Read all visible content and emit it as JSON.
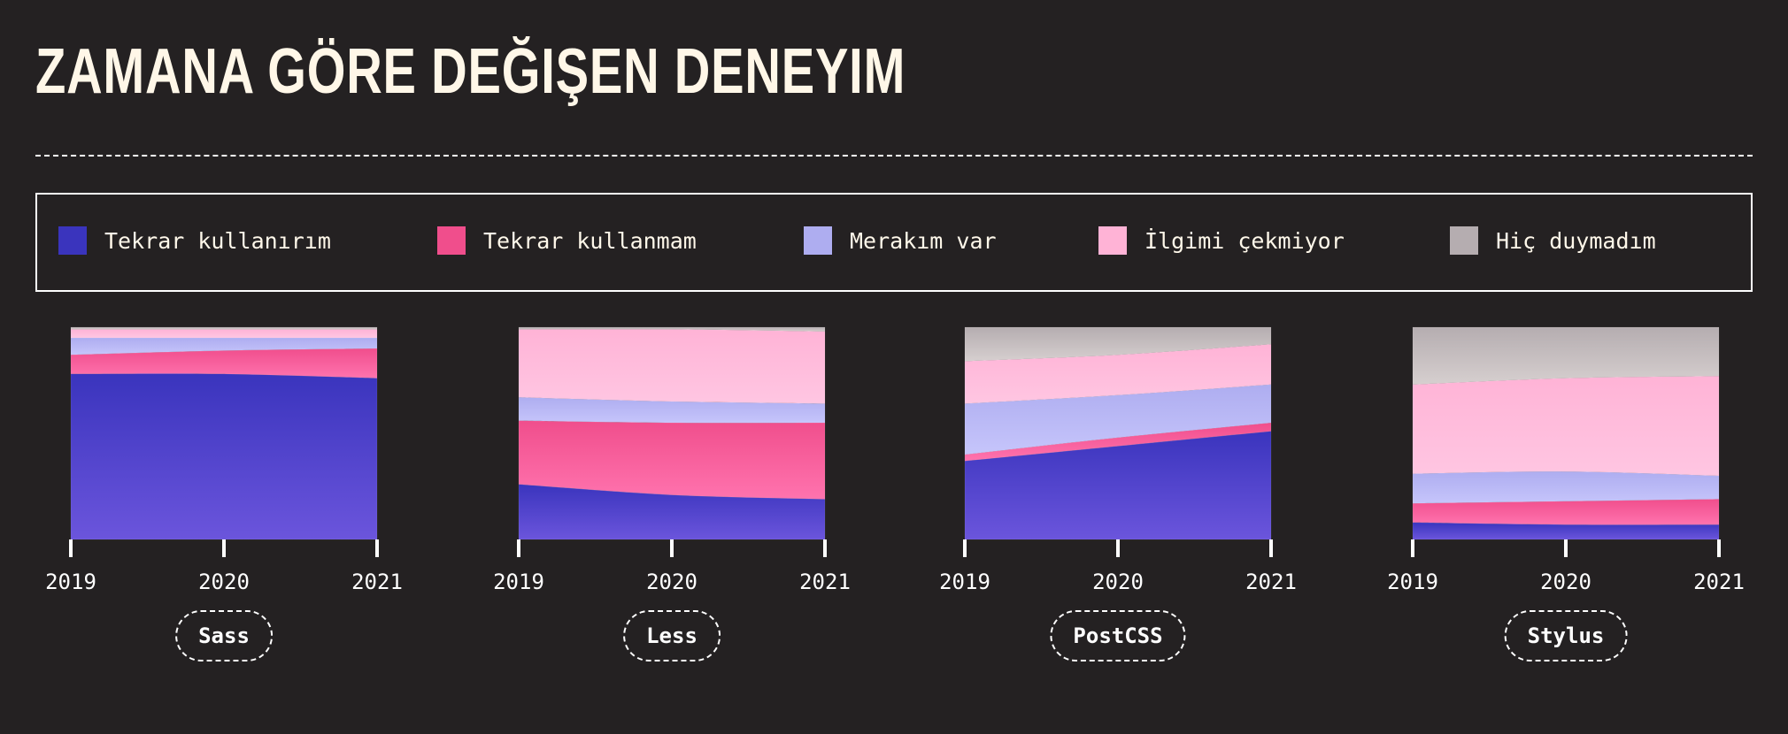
{
  "title": "ZAMANA GÖRE DEĞIŞEN DENEYIM",
  "legend": [
    {
      "label": "Tekrar kullanırım",
      "color": "#3a34bd"
    },
    {
      "label": "Tekrar kullanmam",
      "color": "#f04e8c"
    },
    {
      "label": "Merakım var",
      "color": "#aeadf0"
    },
    {
      "label": "İlgimi çekmiyor",
      "color": "#ffb3d6"
    },
    {
      "label": "Hiç duymadım",
      "color": "#b5adb0"
    }
  ],
  "chart_data": [
    {
      "type": "area",
      "stacked": true,
      "normalized": true,
      "label": "Sass",
      "x": [
        "2019",
        "2020",
        "2021"
      ],
      "series": [
        {
          "name": "Tekrar kullanırım",
          "values": [
            78,
            78,
            76
          ]
        },
        {
          "name": "Tekrar kullanmam",
          "values": [
            9,
            11,
            14
          ]
        },
        {
          "name": "Merakım var",
          "values": [
            8,
            6,
            5
          ]
        },
        {
          "name": "İlgimi çekmiyor",
          "values": [
            4,
            4,
            4
          ]
        },
        {
          "name": "Hiç duymadım",
          "values": [
            1,
            1,
            1
          ]
        }
      ]
    },
    {
      "type": "area",
      "stacked": true,
      "normalized": true,
      "label": "Less",
      "x": [
        "2019",
        "2020",
        "2021"
      ],
      "series": [
        {
          "name": "Tekrar kullanırım",
          "values": [
            26,
            21,
            19
          ]
        },
        {
          "name": "Tekrar kullanmam",
          "values": [
            30,
            34,
            36
          ]
        },
        {
          "name": "Merakım var",
          "values": [
            11,
            10,
            9
          ]
        },
        {
          "name": "İlgimi çekmiyor",
          "values": [
            32,
            34,
            34
          ]
        },
        {
          "name": "Hiç duymadım",
          "values": [
            1,
            1,
            2
          ]
        }
      ]
    },
    {
      "type": "area",
      "stacked": true,
      "normalized": true,
      "label": "PostCSS",
      "x": [
        "2019",
        "2020",
        "2021"
      ],
      "series": [
        {
          "name": "Tekrar kullanırım",
          "values": [
            37,
            44,
            51
          ]
        },
        {
          "name": "Tekrar kullanmam",
          "values": [
            3,
            4,
            4
          ]
        },
        {
          "name": "Merakım var",
          "values": [
            24,
            20,
            18
          ]
        },
        {
          "name": "İlgimi çekmiyor",
          "values": [
            20,
            19,
            19
          ]
        },
        {
          "name": "Hiç duymadım",
          "values": [
            16,
            13,
            8
          ]
        }
      ]
    },
    {
      "type": "area",
      "stacked": true,
      "normalized": true,
      "label": "Stylus",
      "x": [
        "2019",
        "2020",
        "2021"
      ],
      "series": [
        {
          "name": "Tekrar kullanırım",
          "values": [
            8,
            7,
            7
          ]
        },
        {
          "name": "Tekrar kullanmam",
          "values": [
            9,
            11,
            12
          ]
        },
        {
          "name": "Merakım var",
          "values": [
            14,
            14,
            11
          ]
        },
        {
          "name": "İlgimi çekmiyor",
          "values": [
            42,
            44,
            47
          ]
        },
        {
          "name": "Hiç duymadım",
          "values": [
            27,
            24,
            23
          ]
        }
      ]
    }
  ]
}
